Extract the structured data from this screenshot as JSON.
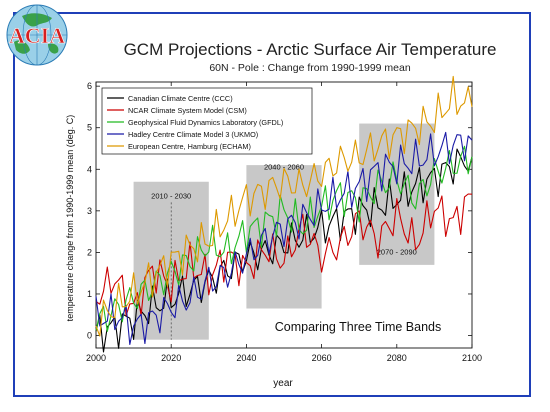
{
  "logo": {
    "text": "ACIA",
    "icon": "globe-icon"
  },
  "colors": {
    "frame": "#1f3fb8",
    "band": "#c8c8c8",
    "ccc": "#000000",
    "csm": "#cc0000",
    "gfdl": "#22bb22",
    "ukmo": "#1a1aa6",
    "echam": "#dd9900"
  },
  "chart_data": {
    "type": "line",
    "title": "GCM Projections - Arctic Surface Air Temperature",
    "subtitle": "60N - Pole : Change from 1990-1999 mean",
    "xlabel": "year",
    "ylabel": "temperature change from 1990-1999 mean (deg. C)",
    "xlim": [
      2000,
      2100
    ],
    "ylim": [
      -0.3,
      6.1
    ],
    "xticks": [
      2000,
      2020,
      2040,
      2060,
      2080,
      2100
    ],
    "yticks": [
      0,
      1,
      2,
      3,
      4,
      5,
      6
    ],
    "legend_position": "top-left",
    "annotation": "Comparing Three Time Bands",
    "bands": [
      {
        "label": "2010 - 2030",
        "x": [
          2010,
          2030
        ],
        "y": [
          -0.1,
          3.7
        ],
        "label_y": 3.3
      },
      {
        "label": "2040 - 2060",
        "x": [
          2040,
          2060
        ],
        "y": [
          0.65,
          4.1
        ],
        "label_y": 4.0
      },
      {
        "label": "2070 - 2090",
        "x": [
          2070,
          2090
        ],
        "y": [
          1.7,
          5.1
        ],
        "label_y": 1.95
      }
    ],
    "series": [
      {
        "name": "Canadian Climate Centre (CCC)",
        "color": "#000000",
        "x": [
          2000,
          2005,
          2010,
          2015,
          2020,
          2025,
          2030,
          2035,
          2040,
          2045,
          2050,
          2055,
          2060,
          2065,
          2070,
          2075,
          2080,
          2085,
          2090,
          2095,
          2100
        ],
        "y": [
          0.05,
          0.2,
          0.4,
          0.7,
          0.9,
          1.1,
          1.3,
          1.6,
          1.9,
          2.0,
          2.2,
          2.4,
          2.6,
          2.8,
          3.0,
          3.1,
          3.3,
          3.6,
          3.8,
          4.1,
          4.3
        ]
      },
      {
        "name": "NCAR Climate System Model (CSM)",
        "color": "#cc0000",
        "x": [
          2000,
          2005,
          2010,
          2015,
          2020,
          2025,
          2030,
          2035,
          2040,
          2045,
          2050,
          2055,
          2060,
          2065,
          2070,
          2075,
          2080,
          2085,
          2090,
          2095,
          2100
        ],
        "y": [
          0.9,
          1.4,
          0.6,
          1.6,
          1.2,
          1.7,
          1.4,
          1.9,
          1.6,
          2.1,
          1.8,
          2.6,
          1.9,
          2.2,
          2.8,
          2.3,
          2.9,
          2.2,
          3.1,
          2.7,
          3.4
        ]
      },
      {
        "name": "Geophysical Fluid Dynamics Laboratory (GFDL)",
        "color": "#22bb22",
        "x": [
          2000,
          2005,
          2010,
          2015,
          2020,
          2025,
          2030,
          2035,
          2040,
          2045,
          2050,
          2055,
          2060,
          2065,
          2070,
          2075,
          2080,
          2085,
          2090,
          2095,
          2100
        ],
        "y": [
          0.3,
          0.6,
          0.9,
          1.2,
          1.5,
          1.8,
          2.2,
          2.0,
          2.5,
          2.7,
          3.0,
          2.6,
          3.1,
          3.4,
          3.2,
          3.6,
          3.8,
          3.3,
          3.9,
          4.1,
          4.3
        ]
      },
      {
        "name": "Hadley Centre Climate Model 3 (UKMO)",
        "color": "#1a1aa6",
        "x": [
          2000,
          2005,
          2010,
          2015,
          2020,
          2025,
          2030,
          2035,
          2040,
          2045,
          2050,
          2055,
          2060,
          2065,
          2070,
          2075,
          2080,
          2085,
          2090,
          2095,
          2100
        ],
        "y": [
          0.4,
          0.5,
          0.2,
          0.4,
          0.7,
          0.9,
          1.3,
          1.5,
          1.9,
          2.3,
          2.6,
          2.8,
          3.1,
          3.4,
          3.6,
          4.0,
          4.1,
          4.2,
          4.4,
          4.6,
          4.7
        ]
      },
      {
        "name": "European Centre, Hamburg (ECHAM)",
        "color": "#dd9900",
        "x": [
          2000,
          2005,
          2010,
          2015,
          2020,
          2025,
          2030,
          2035,
          2040,
          2045,
          2050,
          2055,
          2060,
          2065,
          2070,
          2075,
          2080,
          2085,
          2090,
          2095,
          2100
        ],
        "y": [
          0.3,
          0.7,
          1.0,
          1.4,
          1.8,
          2.1,
          2.3,
          2.8,
          3.3,
          3.5,
          3.7,
          3.6,
          3.9,
          4.2,
          4.3,
          4.6,
          4.8,
          5.0,
          5.2,
          5.7,
          5.5
        ]
      }
    ]
  }
}
